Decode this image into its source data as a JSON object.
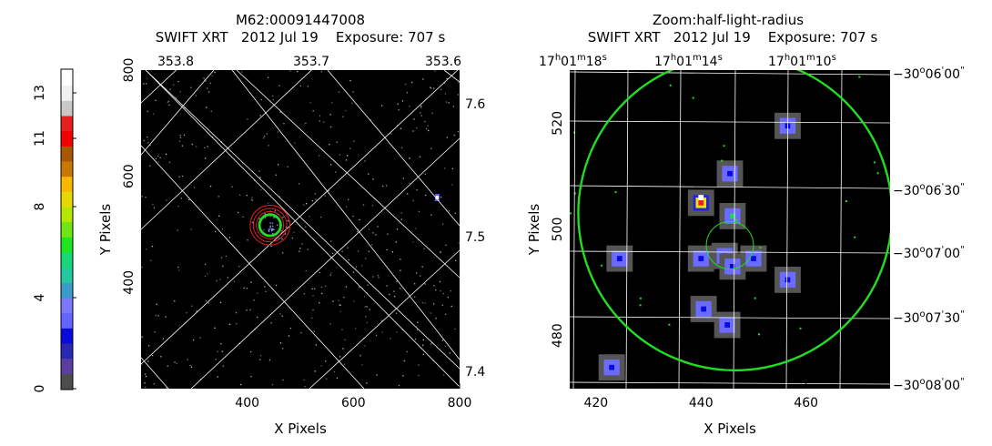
{
  "colorbar": {
    "colors": [
      "#4d4d4d",
      "#5a3ea0",
      "#2828b4",
      "#0a0adc",
      "#6464ff",
      "#7a7aff",
      "#3c9cc8",
      "#23c8a0",
      "#17d878",
      "#1ee61e",
      "#70e614",
      "#b4e600",
      "#e6d800",
      "#f8b800",
      "#c87800",
      "#a85800",
      "#f00000",
      "#e61e1e",
      "#c8c8c8",
      "#f0f0f0",
      "#ffffff"
    ],
    "ticks": [
      {
        "label": "0",
        "value": 0
      },
      {
        "label": "4",
        "value": 4
      },
      {
        "label": "8",
        "value": 8
      },
      {
        "label": "11",
        "value": 11
      },
      {
        "label": "13",
        "value": 13
      }
    ],
    "max": 14
  },
  "left": {
    "title1": "M62:00091447008",
    "title2": "SWIFT XRT   2012 Jul 19    Exposure: 707 s",
    "xlabel": "X Pixels",
    "ylabel": "Y Pixels",
    "xlim": [
      200,
      800
    ],
    "ylim": [
      200,
      800
    ],
    "xticks": [
      "400",
      "600",
      "800"
    ],
    "xtick_values": [
      400,
      600,
      800
    ],
    "yticks": [
      "400",
      "600",
      "800"
    ],
    "ytick_values": [
      400,
      600,
      800
    ],
    "top_ticks": [
      "353.8",
      "353.7",
      "353.6"
    ],
    "right_ticks": [
      "7.6",
      "7.5",
      "7.4"
    ],
    "green_circle": {
      "x": 443,
      "y": 508,
      "r": 32
    },
    "red_circles": [
      {
        "r": 43
      },
      {
        "r": 53
      },
      {
        "r": 63
      }
    ],
    "bright_source": {
      "x": 757,
      "y": 560
    }
  },
  "right": {
    "title1": "Zoom:half-light-radius",
    "title2": "SWIFT XRT   2012 Jul 19    Exposure: 707 s",
    "xlabel": "X Pixels",
    "ylabel": "Y Pixels",
    "xlim": [
      415,
      476
    ],
    "ylim": [
      470,
      530
    ],
    "xticks": [
      "420",
      "440",
      "460"
    ],
    "xtick_values": [
      420,
      440,
      460
    ],
    "yticks": [
      "480",
      "500",
      "520"
    ],
    "ytick_values": [
      480,
      500,
      520
    ],
    "top_ticks": [
      {
        "h": "17",
        "hs": "h",
        "m": "01",
        "ms": "m",
        "s": "18",
        "ss": "s"
      },
      {
        "h": "17",
        "hs": "h",
        "m": "01",
        "ms": "m",
        "s": "14",
        "ss": "s"
      },
      {
        "h": "17",
        "hs": "h",
        "m": "01",
        "ms": "m",
        "s": "10",
        "ss": "s"
      }
    ],
    "right_ticks": [
      {
        "d": "−30",
        "ds": "o",
        "m": "06",
        "ms": "'",
        "s": "00",
        "ss": "\""
      },
      {
        "d": "−30",
        "ds": "o",
        "m": "06",
        "ms": "'",
        "s": "30",
        "ss": "\""
      },
      {
        "d": "−30",
        "ds": "o",
        "m": "07",
        "ms": "'",
        "s": "00",
        "ss": "\""
      },
      {
        "d": "−30",
        "ds": "o",
        "m": "07",
        "ms": "'",
        "s": "30",
        "ss": "\""
      },
      {
        "d": "−30",
        "ds": "o",
        "m": "08",
        "ms": "'",
        "s": "00",
        "ss": "\""
      }
    ],
    "big_circle": {
      "x": 446.5,
      "y": 503,
      "r": 29
    },
    "small_circle": {
      "x": 445.5,
      "y": 497,
      "r": 4.5
    },
    "sources": [
      {
        "x": 456.5,
        "y": 519.5,
        "core": "#0a0adc"
      },
      {
        "x": 445.5,
        "y": 510.5,
        "core": "#0a0adc"
      },
      {
        "x": 440,
        "y": 505,
        "core": "#ff2020"
      },
      {
        "x": 446,
        "y": 502.5,
        "core": "#20d060"
      },
      {
        "x": 424.5,
        "y": 494.5,
        "core": "#0a0adc"
      },
      {
        "x": 440,
        "y": 494.5,
        "core": "#0a0adc"
      },
      {
        "x": 444.5,
        "y": 495,
        "core": "#0a0adc"
      },
      {
        "x": 446,
        "y": 493,
        "core": "#0a0adc"
      },
      {
        "x": 450,
        "y": 494.5,
        "core": "#0a0adc"
      },
      {
        "x": 456.5,
        "y": 490.5,
        "core": "#0a0adc"
      },
      {
        "x": 440.5,
        "y": 485,
        "core": "#0a0adc"
      },
      {
        "x": 445,
        "y": 482,
        "core": "#0a0adc"
      },
      {
        "x": 423,
        "y": 474,
        "core": "#0a0adc"
      }
    ]
  }
}
